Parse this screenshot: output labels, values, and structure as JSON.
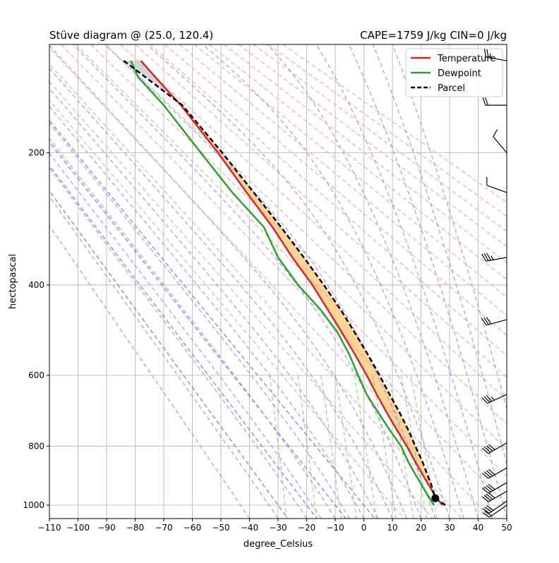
{
  "chart_data": {
    "type": "line",
    "title_left": "Stüve diagram @ (25.0, 120.4)",
    "title_right": "CAPE=1759 J/kg  CIN=0 J/kg",
    "xlabel": "degree_Celsius",
    "ylabel": "hectopascal",
    "xlim": [
      -110,
      50
    ],
    "ylim": [
      1050,
      100
    ],
    "y_scale": "pressure^0.286 (Stüve)",
    "x_ticks": [
      "−110",
      "−100",
      "−90",
      "−80",
      "−70",
      "−60",
      "−50",
      "−40",
      "−30",
      "−20",
      "−10",
      "0",
      "10",
      "20",
      "30",
      "40",
      "50"
    ],
    "y_ticks": [
      "200",
      "400",
      "600",
      "800",
      "1000"
    ],
    "grid": true,
    "legend_position": "top-right",
    "series": [
      {
        "name": "Temperature",
        "color": "#d62728",
        "pressure": [
          1000,
          975,
          950,
          925,
          900,
          850,
          800,
          750,
          700,
          650,
          600,
          550,
          500,
          450,
          400,
          350,
          300,
          250,
          200,
          150,
          125,
          112
        ],
        "temperature": [
          27.5,
          25.5,
          24.0,
          22.5,
          21.0,
          18.0,
          15.0,
          11.5,
          8.0,
          4.5,
          1.0,
          -3.0,
          -7.5,
          -12.5,
          -18.0,
          -25.0,
          -32.0,
          -41.0,
          -51.0,
          -64.0,
          -73.0,
          -78.0
        ]
      },
      {
        "name": "Dewpoint",
        "color": "#2ca02c",
        "pressure": [
          1000,
          975,
          950,
          925,
          900,
          850,
          800,
          750,
          700,
          650,
          600,
          550,
          500,
          450,
          400,
          350,
          300,
          250,
          200,
          150,
          125,
          112
        ],
        "temperature": [
          24.5,
          23.0,
          21.5,
          20.0,
          18.5,
          15.5,
          13.0,
          9.0,
          5.0,
          1.0,
          -2.0,
          -5.0,
          -9.0,
          -15.0,
          -23.0,
          -30.0,
          -35.0,
          -46.0,
          -57.0,
          -70.0,
          -79.0,
          -81.5
        ]
      },
      {
        "name": "Parcel",
        "color": "#000000",
        "style": "dashed",
        "pressure": [
          1000,
          975,
          950,
          925,
          900,
          850,
          800,
          750,
          700,
          650,
          600,
          550,
          500,
          450,
          400,
          350,
          300,
          250,
          200,
          150,
          112
        ],
        "temperature": [
          28.5,
          25.0,
          24.3,
          23.5,
          22.5,
          20.5,
          18.0,
          15.5,
          12.5,
          9.0,
          5.5,
          1.5,
          -3.0,
          -8.0,
          -14.0,
          -21.0,
          -29.0,
          -38.5,
          -49.5,
          -63.5,
          -84.0
        ]
      }
    ],
    "parcel_start": {
      "temperature": 25.0,
      "pressure": 975
    },
    "shading": [
      {
        "name": "CAPE",
        "between": [
          "Parcel",
          "Temperature"
        ],
        "color": "#ffc674"
      },
      {
        "name": "CIN",
        "between": [
          "Temperature",
          "Parcel"
        ],
        "color": "#bbbbbb"
      }
    ],
    "dry_adiabats_theta_C": [
      -30,
      -20,
      -10,
      0,
      10,
      20,
      30,
      40,
      50,
      60,
      70,
      80,
      90,
      100,
      110,
      120,
      130,
      140,
      150,
      160,
      170,
      180,
      190,
      200
    ],
    "moist_adiabats_T_C": [
      -40,
      -30,
      -20,
      -15,
      -10,
      -5,
      0,
      5,
      10,
      15,
      20,
      25,
      30,
      35,
      40,
      45,
      50,
      55,
      60
    ],
    "mixing_ratio_lines_g_per_kg": [
      0.4,
      1,
      2,
      3,
      5,
      8,
      12,
      16,
      20
    ],
    "wind_barbs": [
      {
        "pressure": 112,
        "speed_kt": 25,
        "dir_deg": 280
      },
      {
        "pressure": 150,
        "speed_kt": 20,
        "dir_deg": 270
      },
      {
        "pressure": 200,
        "speed_kt": 10,
        "dir_deg": 320
      },
      {
        "pressure": 250,
        "speed_kt": 10,
        "dir_deg": 290
      },
      {
        "pressure": 350,
        "speed_kt": 35,
        "dir_deg": 260
      },
      {
        "pressure": 470,
        "speed_kt": 30,
        "dir_deg": 255
      },
      {
        "pressure": 650,
        "speed_kt": 35,
        "dir_deg": 245
      },
      {
        "pressure": 790,
        "speed_kt": 40,
        "dir_deg": 240
      },
      {
        "pressure": 870,
        "speed_kt": 40,
        "dir_deg": 240
      },
      {
        "pressure": 920,
        "speed_kt": 40,
        "dir_deg": 240
      },
      {
        "pressure": 950,
        "speed_kt": 40,
        "dir_deg": 240
      },
      {
        "pressure": 985,
        "speed_kt": 30,
        "dir_deg": 235
      },
      {
        "pressure": 1000,
        "speed_kt": 20,
        "dir_deg": 235
      }
    ]
  }
}
